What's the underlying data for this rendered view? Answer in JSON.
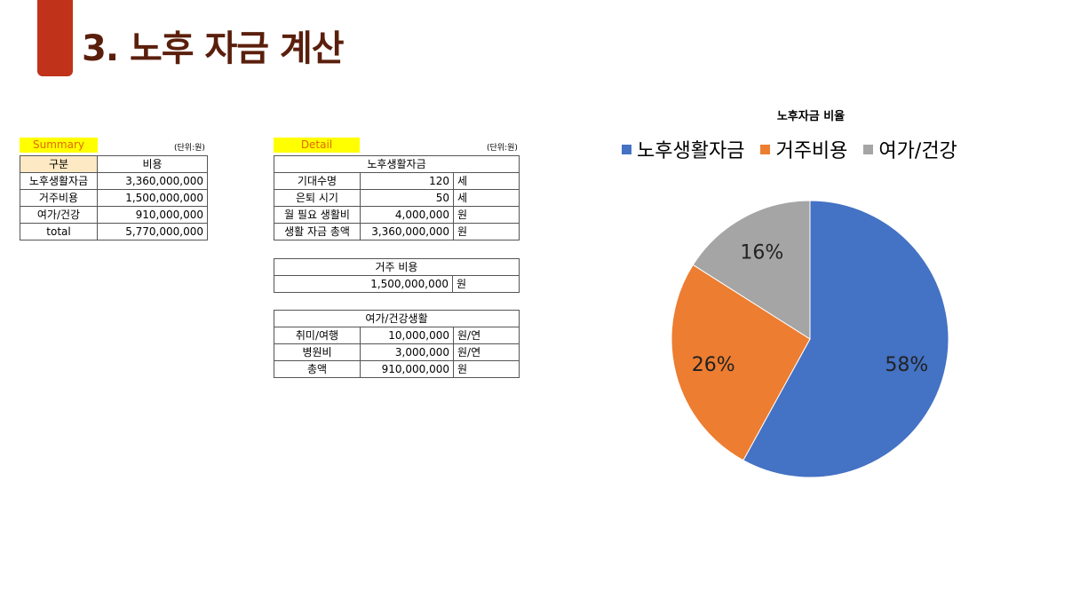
{
  "page": {
    "title": "3. 노후 자금 계산"
  },
  "summary": {
    "tag": "Summary",
    "unit": "(단위:원)",
    "headers": [
      "구분",
      "비용"
    ],
    "rows": [
      {
        "label": "노후생활자금",
        "value": "3,360,000,000"
      },
      {
        "label": "거주비용",
        "value": "1,500,000,000"
      },
      {
        "label": "여가/건강",
        "value": "910,000,000"
      },
      {
        "label": "total",
        "value": "5,770,000,000"
      }
    ]
  },
  "detail": {
    "tag": "Detail",
    "unit": "(단위:원)",
    "living": {
      "title": "노후생활자금",
      "rows": [
        {
          "label": "기대수명",
          "value": "120",
          "unit": "세"
        },
        {
          "label": "은퇴 시기",
          "value": "50",
          "unit": "세"
        },
        {
          "label": "월 필요 생활비",
          "value": "4,000,000",
          "unit": "원"
        },
        {
          "label": "생활 자금 총액",
          "value": "3,360,000,000",
          "unit": "원"
        }
      ]
    },
    "housing": {
      "title": "거주 비용",
      "value": "1,500,000,000",
      "unit": "원"
    },
    "leisure": {
      "title": "여가/건강생활",
      "rows": [
        {
          "label": "취미/여행",
          "value": "10,000,000",
          "unit": "원/연"
        },
        {
          "label": "병원비",
          "value": "3,000,000",
          "unit": "원/연"
        },
        {
          "label": "총액",
          "value": "910,000,000",
          "unit": "원"
        }
      ]
    }
  },
  "chart_data": {
    "type": "pie",
    "title": "노후자금 비율",
    "legend_position": "top",
    "categories": [
      "노후생활자금",
      "거주비용",
      "여가/건강"
    ],
    "values": [
      58,
      26,
      16
    ],
    "labels": [
      "58%",
      "26%",
      "16%"
    ],
    "colors": [
      "#4472c4",
      "#ed7d31",
      "#a5a5a5"
    ]
  }
}
